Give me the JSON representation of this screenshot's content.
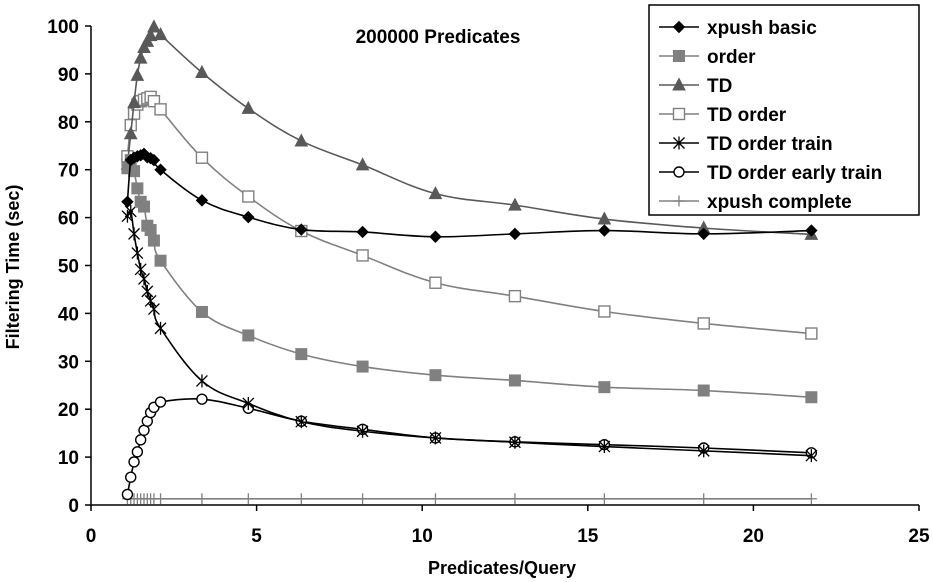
{
  "chart_data": {
    "type": "line",
    "title": "200000 Predicates",
    "xlabel": "Predicates/Query",
    "ylabel": "Filtering Time (sec)",
    "xlim": [
      0,
      25
    ],
    "ylim": [
      0,
      100
    ],
    "xticks": [
      "0",
      "5",
      "10",
      "15",
      "20",
      "25"
    ],
    "yticks": [
      "0",
      "10",
      "20",
      "30",
      "40",
      "50",
      "60",
      "70",
      "80",
      "90",
      "100"
    ],
    "grid": false,
    "legend_position": "top-right",
    "series": [
      {
        "name": "xpush basic",
        "marker": "diamond",
        "color": "#000000",
        "x": [
          1.1,
          1.2,
          1.3,
          1.4,
          1.5,
          1.6,
          1.7,
          1.8,
          1.9,
          2.1,
          3.35,
          4.75,
          6.35,
          8.2,
          10.4,
          12.8,
          15.5,
          18.5,
          21.75
        ],
        "y": [
          63.3,
          72,
          72.5,
          72.8,
          73,
          73.3,
          72.6,
          72.4,
          72,
          70,
          63.6,
          60.1,
          57.5,
          57,
          56,
          56.6,
          57.3,
          56.6,
          57.3
        ]
      },
      {
        "name": "order",
        "marker": "square-filled",
        "color": "#808080",
        "x": [
          1.1,
          1.2,
          1.3,
          1.4,
          1.5,
          1.6,
          1.7,
          1.8,
          1.9,
          2.1,
          3.35,
          4.75,
          6.35,
          8.2,
          10.4,
          12.8,
          15.5,
          18.5,
          21.75
        ],
        "y": [
          70.3,
          72,
          69.7,
          66.1,
          63.3,
          62.3,
          58.3,
          57.4,
          55.2,
          51,
          40.3,
          35.4,
          31.5,
          28.9,
          27.1,
          26,
          24.6,
          23.9,
          22.5
        ]
      },
      {
        "name": "TD",
        "marker": "triangle-filled",
        "color": "#595959",
        "x": [
          1.1,
          1.2,
          1.3,
          1.4,
          1.5,
          1.6,
          1.7,
          1.8,
          1.9,
          2.1,
          3.35,
          4.75,
          6.35,
          8.2,
          10.4,
          12.8,
          15.5,
          18.5,
          21.75
        ],
        "y": [
          71.2,
          77.5,
          84,
          89.7,
          93.3,
          95.5,
          96.8,
          98,
          99.8,
          98.2,
          90.3,
          82.8,
          76,
          71,
          65,
          62.6,
          59.7,
          57.8,
          56.5
        ]
      },
      {
        "name": "TD order",
        "marker": "square-open",
        "color": "#808080",
        "x": [
          1.1,
          1.2,
          1.3,
          1.4,
          1.5,
          1.6,
          1.7,
          1.8,
          1.9,
          2.1,
          3.35,
          4.75,
          6.35,
          8.2,
          10.4,
          12.8,
          15.5,
          18.5,
          21.75
        ],
        "y": [
          72.8,
          79.3,
          81.7,
          83.6,
          84.3,
          84.6,
          84.9,
          85.2,
          84.3,
          82.6,
          72.5,
          64.4,
          57.2,
          52.1,
          46.4,
          43.6,
          40.4,
          37.9,
          35.8
        ]
      },
      {
        "name": "TD order train",
        "marker": "asterisk",
        "color": "#000000",
        "x": [
          1.1,
          1.2,
          1.3,
          1.4,
          1.5,
          1.6,
          1.7,
          1.8,
          1.9,
          2.1,
          3.35,
          4.75,
          6.35,
          8.2,
          10.4,
          12.8,
          15.5,
          18.5,
          21.75
        ],
        "y": [
          60.3,
          61.3,
          56.6,
          52.6,
          49.2,
          47.2,
          44.6,
          42.6,
          40.9,
          36.9,
          25.9,
          21.2,
          17.4,
          15.4,
          14,
          13.1,
          12.2,
          11.3,
          10.3
        ]
      },
      {
        "name": "TD order early train",
        "marker": "circle-open",
        "color": "#000000",
        "x": [
          1.1,
          1.2,
          1.3,
          1.4,
          1.5,
          1.6,
          1.7,
          1.8,
          1.9,
          2.1,
          3.35,
          4.75,
          6.35,
          8.2,
          10.4,
          12.8,
          15.5,
          18.5,
          21.75
        ],
        "y": [
          2.2,
          5.8,
          9,
          11.1,
          13.6,
          15.6,
          17.5,
          19.3,
          20.4,
          21.5,
          22.1,
          20.2,
          17.5,
          15.8,
          14,
          13.2,
          12.6,
          11.9,
          10.9
        ]
      },
      {
        "name": "xpush complete",
        "marker": "plus",
        "color": "#808080",
        "x": [
          1.1,
          1.2,
          1.3,
          1.4,
          1.5,
          1.6,
          1.7,
          1.8,
          1.9,
          2.1,
          3.35,
          4.75,
          6.35,
          8.2,
          10.4,
          12.8,
          15.5,
          18.5,
          21.75
        ],
        "y": [
          1.3,
          1.3,
          1.3,
          1.3,
          1.3,
          1.3,
          1.3,
          1.3,
          1.3,
          1.3,
          1.3,
          1.3,
          1.3,
          1.3,
          1.3,
          1.3,
          1.3,
          1.3,
          1.3
        ]
      }
    ]
  }
}
